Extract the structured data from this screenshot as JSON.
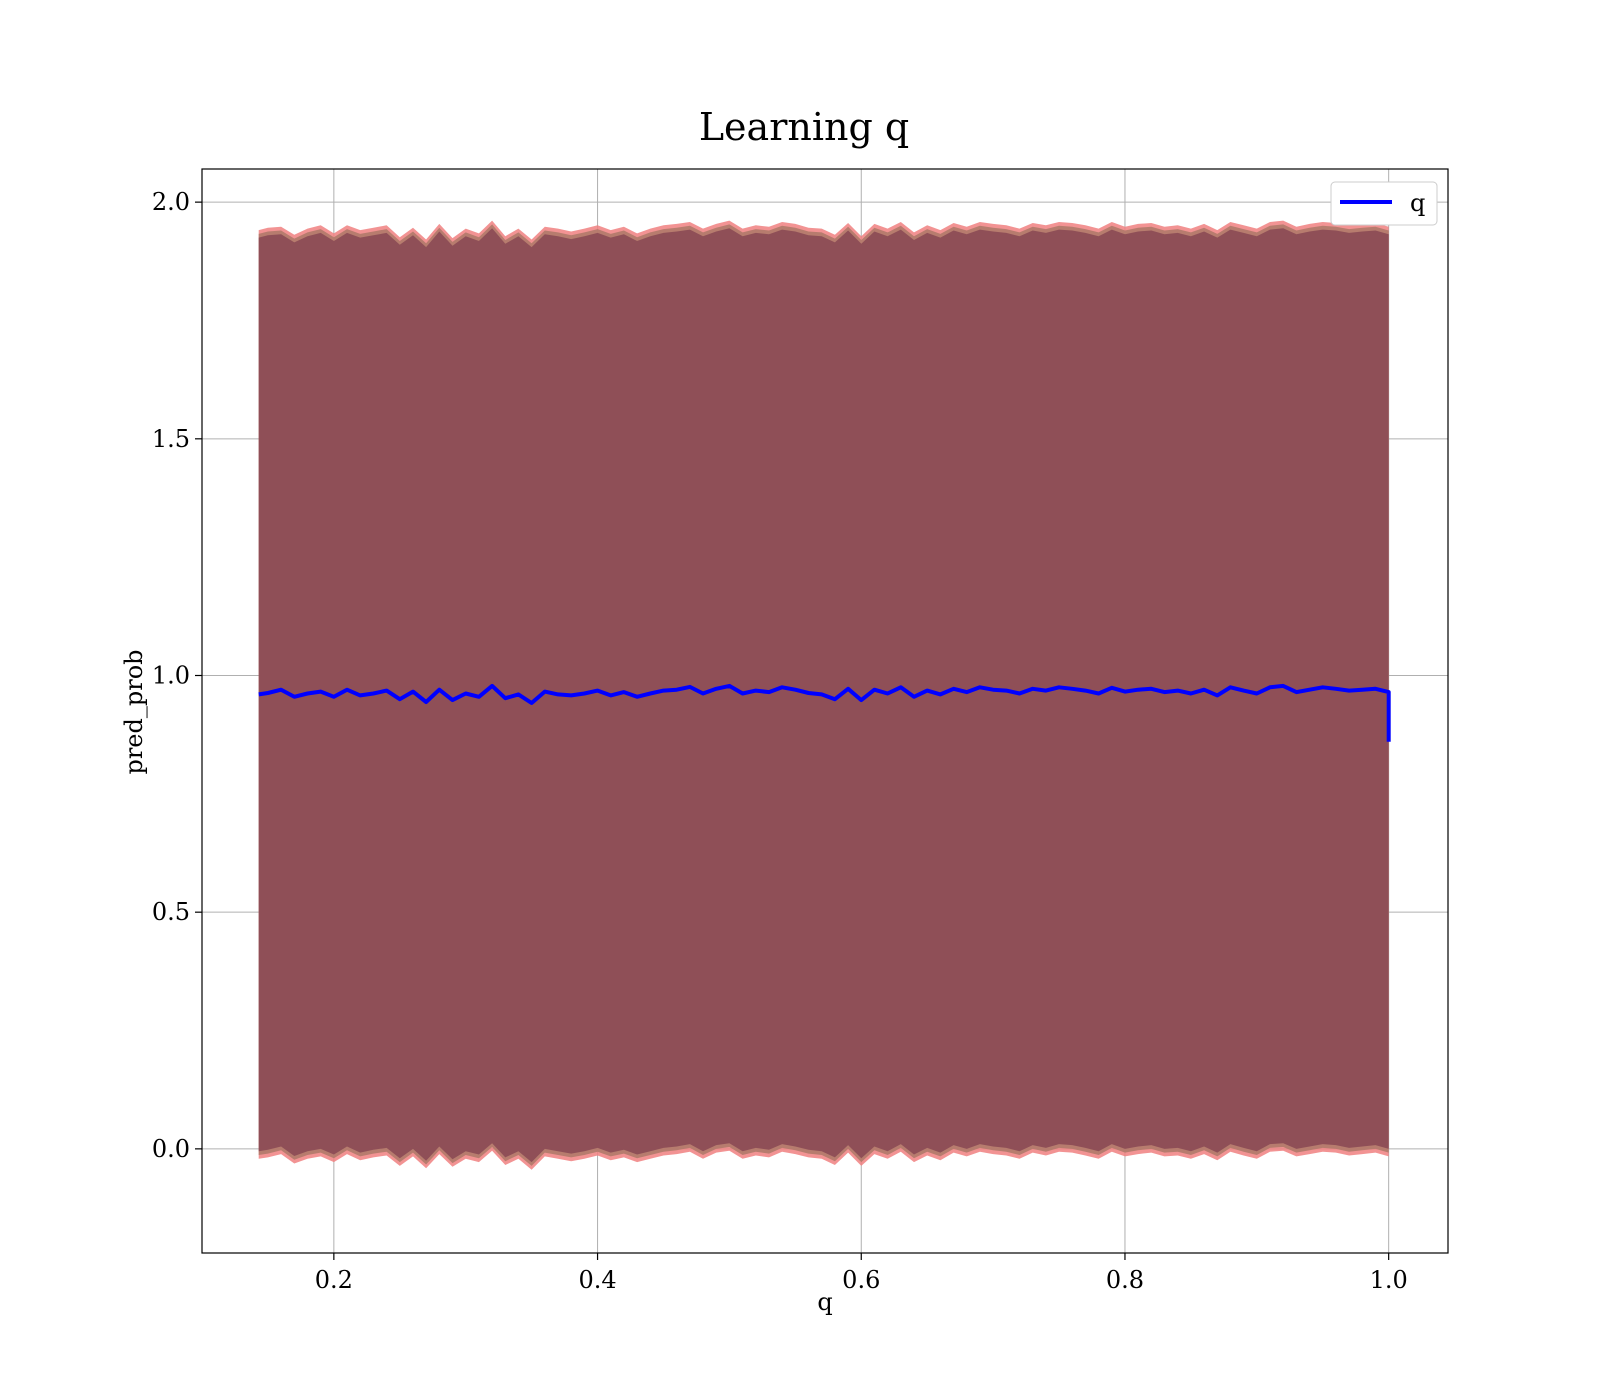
{
  "chart_data": {
    "type": "area",
    "title": "Learning q",
    "xlabel": "q",
    "ylabel": "pred_prob",
    "xlim": [
      0.1,
      1.045
    ],
    "ylim": [
      -0.22,
      2.07
    ],
    "x_ticks": [
      {
        "value": 0.2,
        "label": "0.2"
      },
      {
        "value": 0.4,
        "label": "0.4"
      },
      {
        "value": 0.6,
        "label": "0.6"
      },
      {
        "value": 0.8,
        "label": "0.8"
      },
      {
        "value": 1.0,
        "label": "1.0"
      }
    ],
    "y_ticks": [
      {
        "value": 0.0,
        "label": "0.0"
      },
      {
        "value": 0.5,
        "label": "0.5"
      },
      {
        "value": 1.0,
        "label": "1.0"
      },
      {
        "value": 1.5,
        "label": "1.5"
      },
      {
        "value": 2.0,
        "label": "2.0"
      }
    ],
    "grid": true,
    "legend": {
      "position": "top-right",
      "entries": [
        "q"
      ]
    },
    "colors": {
      "line": "#0000ff",
      "band_inner": "#7f3f4f",
      "band_mid": "#b07a6a",
      "band_outer": "#f08080",
      "grid": "#b0b0b0"
    },
    "series": [
      {
        "name": "q",
        "x": [
          0.143,
          0.15,
          0.16,
          0.17,
          0.18,
          0.19,
          0.2,
          0.21,
          0.22,
          0.23,
          0.24,
          0.25,
          0.26,
          0.27,
          0.28,
          0.29,
          0.3,
          0.31,
          0.32,
          0.33,
          0.34,
          0.35,
          0.36,
          0.37,
          0.38,
          0.39,
          0.4,
          0.41,
          0.42,
          0.43,
          0.44,
          0.45,
          0.46,
          0.47,
          0.48,
          0.49,
          0.5,
          0.51,
          0.52,
          0.53,
          0.54,
          0.55,
          0.56,
          0.57,
          0.58,
          0.59,
          0.6,
          0.61,
          0.62,
          0.63,
          0.64,
          0.65,
          0.66,
          0.67,
          0.68,
          0.69,
          0.7,
          0.71,
          0.72,
          0.73,
          0.74,
          0.75,
          0.76,
          0.77,
          0.78,
          0.79,
          0.8,
          0.81,
          0.82,
          0.83,
          0.84,
          0.85,
          0.86,
          0.87,
          0.88,
          0.89,
          0.9,
          0.91,
          0.92,
          0.93,
          0.94,
          0.95,
          0.96,
          0.97,
          0.98,
          0.99,
          1.0,
          1.0
        ],
        "values": [
          0.96,
          0.963,
          0.97,
          0.955,
          0.962,
          0.966,
          0.955,
          0.97,
          0.958,
          0.962,
          0.968,
          0.95,
          0.966,
          0.944,
          0.97,
          0.948,
          0.962,
          0.955,
          0.978,
          0.952,
          0.96,
          0.942,
          0.966,
          0.96,
          0.958,
          0.962,
          0.968,
          0.958,
          0.965,
          0.955,
          0.962,
          0.968,
          0.97,
          0.976,
          0.962,
          0.972,
          0.978,
          0.962,
          0.968,
          0.965,
          0.975,
          0.97,
          0.963,
          0.96,
          0.95,
          0.972,
          0.948,
          0.97,
          0.962,
          0.975,
          0.955,
          0.968,
          0.96,
          0.972,
          0.965,
          0.975,
          0.97,
          0.968,
          0.962,
          0.972,
          0.968,
          0.975,
          0.972,
          0.968,
          0.962,
          0.974,
          0.966,
          0.97,
          0.972,
          0.965,
          0.968,
          0.962,
          0.97,
          0.958,
          0.975,
          0.968,
          0.962,
          0.975,
          0.978,
          0.965,
          0.97,
          0.975,
          0.972,
          0.968,
          0.97,
          0.972,
          0.965,
          0.86
        ],
        "band_upper": [
          1.925,
          1.93,
          1.932,
          1.915,
          1.928,
          1.935,
          1.918,
          1.935,
          1.925,
          1.93,
          1.935,
          1.91,
          1.93,
          1.905,
          1.938,
          1.908,
          1.928,
          1.918,
          1.945,
          1.912,
          1.928,
          1.905,
          1.932,
          1.928,
          1.922,
          1.928,
          1.935,
          1.925,
          1.932,
          1.918,
          1.928,
          1.935,
          1.938,
          1.942,
          1.928,
          1.938,
          1.945,
          1.928,
          1.935,
          1.932,
          1.942,
          1.938,
          1.93,
          1.928,
          1.915,
          1.94,
          1.912,
          1.938,
          1.928,
          1.942,
          1.92,
          1.935,
          1.925,
          1.94,
          1.932,
          1.942,
          1.938,
          1.935,
          1.928,
          1.94,
          1.935,
          1.942,
          1.94,
          1.935,
          1.928,
          1.942,
          1.932,
          1.938,
          1.94,
          1.932,
          1.935,
          1.928,
          1.938,
          1.925,
          1.942,
          1.935,
          1.928,
          1.942,
          1.945,
          1.932,
          1.938,
          1.942,
          1.94,
          1.935,
          1.938,
          1.94,
          1.932,
          1.93
        ],
        "band_lower": [
          -0.005,
          -0.002,
          0.005,
          -0.015,
          -0.005,
          0.0,
          -0.012,
          0.005,
          -0.008,
          -0.002,
          0.002,
          -0.02,
          0.0,
          -0.025,
          0.005,
          -0.022,
          -0.005,
          -0.012,
          0.012,
          -0.018,
          -0.005,
          -0.028,
          0.0,
          -0.005,
          -0.01,
          -0.005,
          0.002,
          -0.008,
          -0.002,
          -0.012,
          -0.005,
          0.002,
          0.005,
          0.01,
          -0.005,
          0.008,
          0.012,
          -0.005,
          0.002,
          -0.002,
          0.01,
          0.005,
          -0.002,
          -0.005,
          -0.018,
          0.008,
          -0.02,
          0.005,
          -0.005,
          0.01,
          -0.012,
          0.002,
          -0.008,
          0.008,
          0.0,
          0.01,
          0.005,
          0.002,
          -0.005,
          0.008,
          0.002,
          0.01,
          0.008,
          0.002,
          -0.005,
          0.01,
          0.0,
          0.005,
          0.008,
          0.0,
          0.002,
          -0.005,
          0.005,
          -0.008,
          0.01,
          0.002,
          -0.005,
          0.01,
          0.012,
          0.0,
          0.005,
          0.01,
          0.008,
          0.002,
          0.005,
          0.008,
          0.0,
          -0.11
        ]
      }
    ]
  }
}
